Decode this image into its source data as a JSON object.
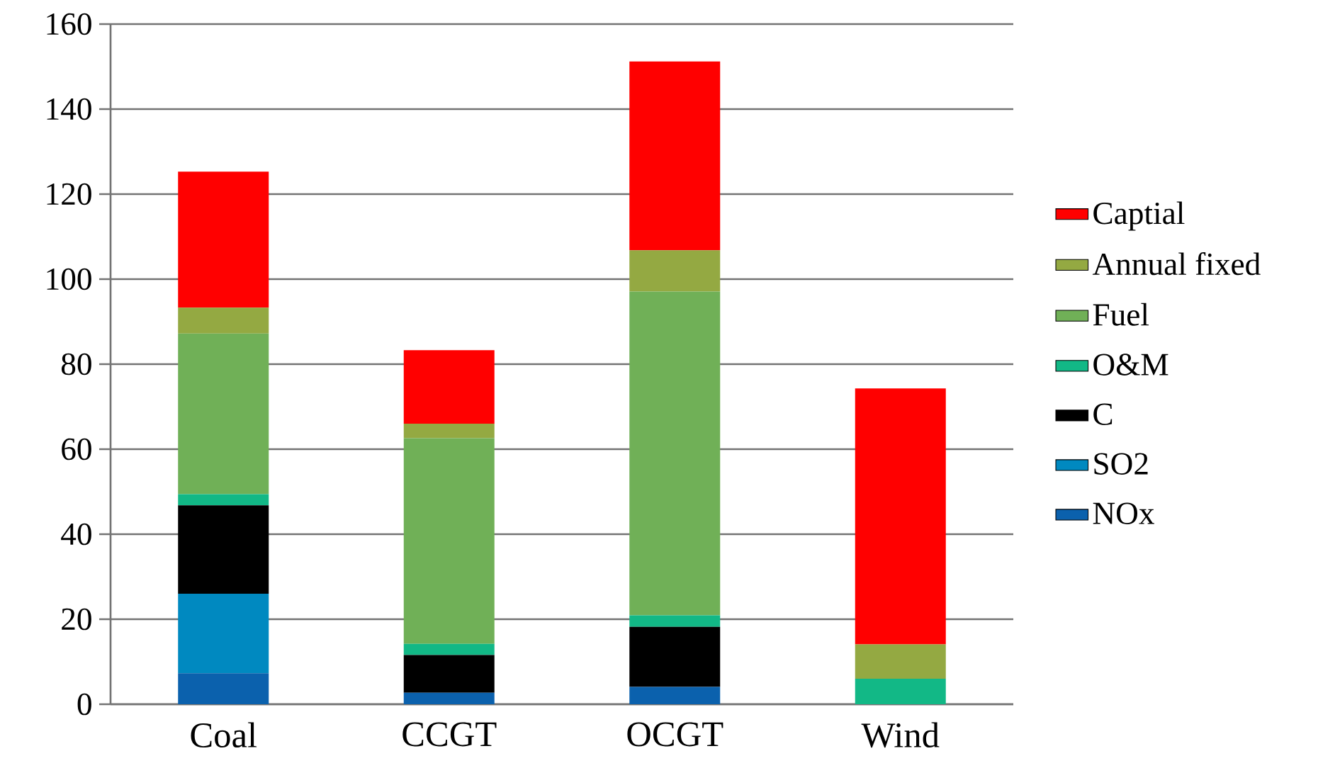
{
  "chart_data": {
    "type": "bar",
    "stacked": true,
    "categories": [
      "Coal",
      "CCGT",
      "OCGT",
      "Wind"
    ],
    "series": [
      {
        "name": "NOx",
        "color": "#0b61ad",
        "values": [
          7.3,
          2.7,
          4.1,
          0
        ]
      },
      {
        "name": "SO2",
        "color": "#0089c0",
        "values": [
          18.7,
          0,
          0,
          0
        ]
      },
      {
        "name": "C",
        "color": "#000000",
        "values": [
          20.8,
          8.9,
          14.1,
          0
        ]
      },
      {
        "name": "O&M",
        "color": "#12b886",
        "values": [
          2.6,
          2.6,
          2.7,
          6
        ]
      },
      {
        "name": "Fuel",
        "color": "#70b057",
        "values": [
          37.8,
          48.4,
          76.2,
          0
        ]
      },
      {
        "name": "Annual fixed",
        "color": "#94a942",
        "values": [
          6.1,
          3.4,
          9.7,
          8.1
        ]
      },
      {
        "name": "Captial",
        "color": "#ff0000",
        "values": [
          32,
          17.3,
          44.4,
          60.2
        ]
      }
    ],
    "ylim": [
      0,
      160
    ],
    "yticks": [
      0,
      20,
      40,
      60,
      80,
      100,
      120,
      140,
      160
    ],
    "grid": "y",
    "legend": "right"
  }
}
